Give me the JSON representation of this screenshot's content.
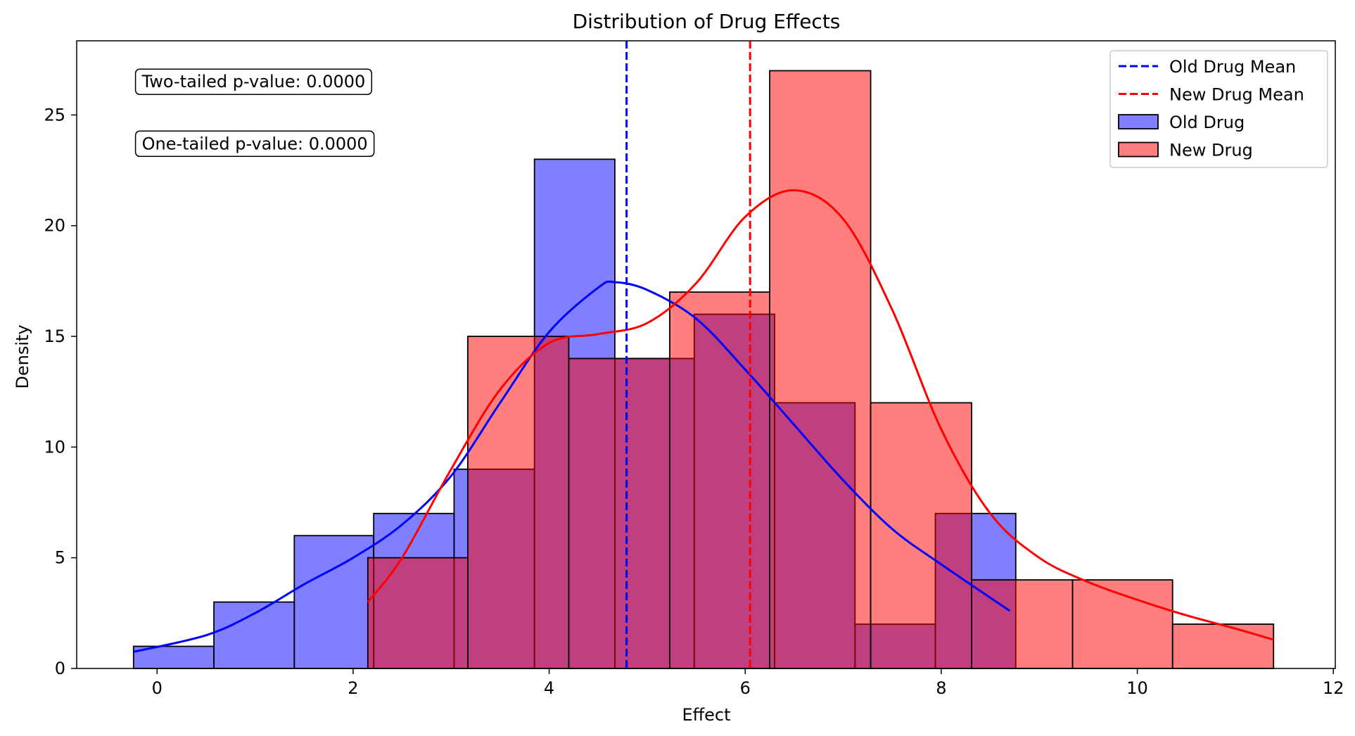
{
  "chart_data": {
    "type": "bar",
    "title": "Distribution of Drug Effects",
    "xlabel": "Effect",
    "ylabel": "Density",
    "xlim": [
      -0.82,
      12.02
    ],
    "ylim": [
      0,
      28.35
    ],
    "xticks": [
      0,
      2,
      4,
      6,
      8,
      10,
      12
    ],
    "yticks": [
      0,
      5,
      10,
      15,
      20,
      25
    ],
    "legend_position": "top-right",
    "grid": false,
    "annotations": [
      {
        "text": "Two-tailed p-value: 0.0000",
        "x": -0.22,
        "y": 26.5
      },
      {
        "text": "One-tailed p-value: 0.0000",
        "x": -0.22,
        "y": 23.7
      }
    ],
    "series": [
      {
        "name": "Old Drug",
        "color": "#0000ff",
        "bin_edges": [
          -0.24,
          0.58,
          1.4,
          2.21,
          3.03,
          3.85,
          4.67,
          5.48,
          6.3,
          7.12,
          7.94,
          8.76
        ],
        "values": [
          1,
          3,
          6,
          7,
          9,
          23,
          14,
          16,
          12,
          2,
          7
        ],
        "mean": 4.79,
        "kde": {
          "x": [
            -0.24,
            0.5,
            1.0,
            1.5,
            2.0,
            2.5,
            3.0,
            3.5,
            4.0,
            4.5,
            4.67,
            5.0,
            5.5,
            6.0,
            6.5,
            7.0,
            7.5,
            8.0,
            8.7
          ],
          "y": [
            0.75,
            1.5,
            2.5,
            3.8,
            5.0,
            6.5,
            8.7,
            12.0,
            15.2,
            17.2,
            17.45,
            17.1,
            15.8,
            13.5,
            11.0,
            8.5,
            6.3,
            4.7,
            2.6
          ]
        }
      },
      {
        "name": "New Drug",
        "color": "#ff0000",
        "bin_edges": [
          2.15,
          3.17,
          4.2,
          5.23,
          6.25,
          7.28,
          8.31,
          9.34,
          10.36,
          11.39
        ],
        "values": [
          5,
          15,
          14,
          17,
          27,
          12,
          4,
          4,
          2
        ],
        "mean": 6.05,
        "kde": {
          "x": [
            2.15,
            2.5,
            3.0,
            3.5,
            4.0,
            4.5,
            5.0,
            5.5,
            6.0,
            6.5,
            7.0,
            7.5,
            8.0,
            8.5,
            9.0,
            9.5,
            10.0,
            10.5,
            11.0,
            11.39
          ],
          "y": [
            3.0,
            5.0,
            9.0,
            12.6,
            14.7,
            15.1,
            15.6,
            17.4,
            20.4,
            21.6,
            20.3,
            16.2,
            10.8,
            7.0,
            5.0,
            3.9,
            3.1,
            2.4,
            1.8,
            1.3
          ]
        }
      }
    ],
    "legend": [
      {
        "label": "Old Drug Mean",
        "kind": "dashed-line",
        "color": "#0000ff"
      },
      {
        "label": "New Drug Mean",
        "kind": "dashed-line",
        "color": "#ff0000"
      },
      {
        "label": "Old Drug",
        "kind": "patch",
        "color": "#0000ff"
      },
      {
        "label": "New Drug",
        "kind": "patch",
        "color": "#ff0000"
      }
    ]
  }
}
